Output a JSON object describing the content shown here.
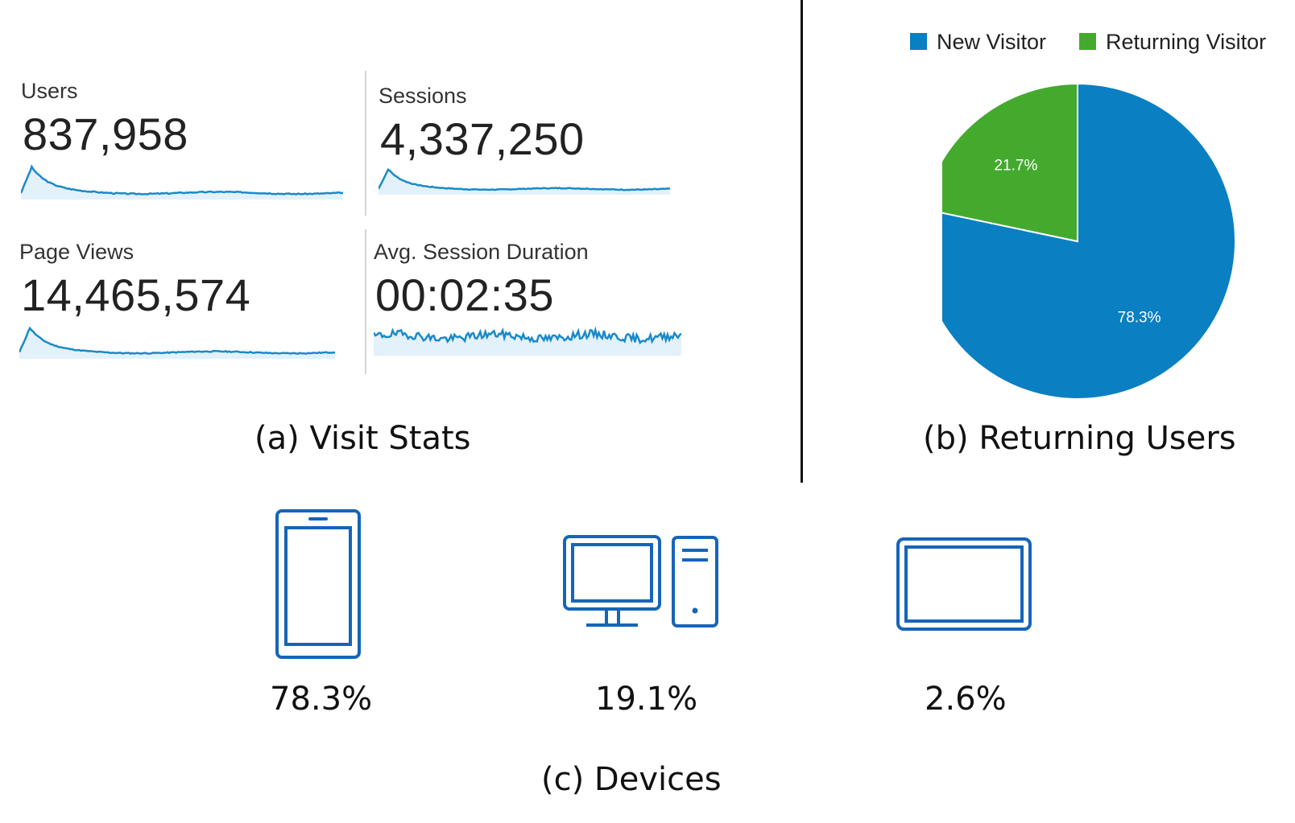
{
  "visit_stats": {
    "caption": "(a) Visit Stats",
    "metrics": [
      {
        "label": "Users",
        "value": "837,958"
      },
      {
        "label": "Sessions",
        "value": "4,337,250"
      },
      {
        "label": "Page Views",
        "value": "14,465,574"
      },
      {
        "label": "Avg. Session Duration",
        "value": "00:02:35"
      }
    ]
  },
  "returning_users": {
    "caption": "(b) Returning Users",
    "legend": [
      "New Visitor",
      "Returning Visitor"
    ]
  },
  "devices": {
    "caption": "(c) Devices",
    "items": [
      {
        "icon": "smartphone-icon",
        "percent": "78.3%"
      },
      {
        "icon": "desktop-computer-icon",
        "percent": "19.1%"
      },
      {
        "icon": "tablet-icon",
        "percent": "2.6%"
      }
    ]
  },
  "colors": {
    "accent_blue": "#0a7fc2",
    "green": "#44aa2e",
    "sparkline": "#1a8ac8",
    "sparkline_fill": "#e3f1fb"
  },
  "chart_data": [
    {
      "type": "pie",
      "title": "",
      "categories": [
        "New Visitor",
        "Returning Visitor"
      ],
      "values": [
        78.3,
        21.7
      ],
      "labels": [
        "78.3%",
        "21.7%"
      ],
      "colors": [
        "#0a7fc2",
        "#44aa2e"
      ],
      "legend": "top-right"
    },
    {
      "type": "bar",
      "title": "",
      "categories": [
        "Mobile",
        "Desktop",
        "Tablet"
      ],
      "values": [
        78.3,
        19.1,
        2.6
      ],
      "labels": [
        "78.3%",
        "19.1%",
        "2.6%"
      ]
    }
  ]
}
